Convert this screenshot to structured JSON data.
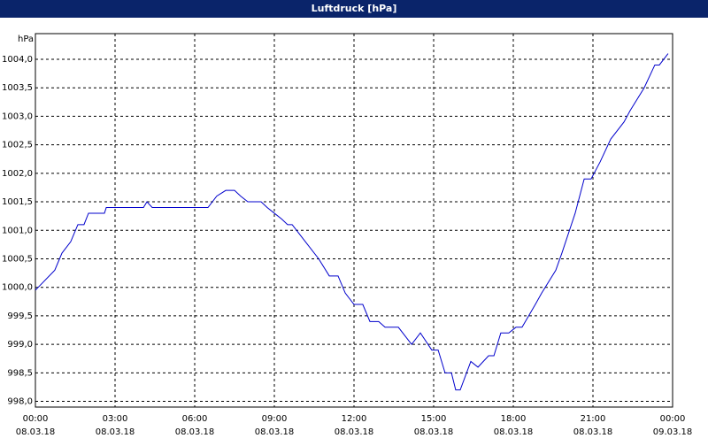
{
  "chart_data": {
    "type": "line",
    "title": "Luftdruck [hPa]",
    "y_label": "hPa",
    "x": [
      0,
      0.73,
      1.0,
      1.33,
      1.6,
      1.83,
      2.0,
      2.6,
      2.67,
      4.07,
      4.2,
      4.4,
      6.5,
      6.83,
      7.17,
      7.5,
      7.73,
      8.0,
      8.5,
      8.73,
      9.0,
      9.27,
      9.5,
      9.67,
      10.17,
      10.67,
      11.07,
      11.4,
      11.67,
      12.0,
      12.33,
      12.6,
      12.93,
      13.17,
      13.67,
      14.17,
      14.5,
      14.93,
      15.17,
      15.43,
      15.67,
      15.83,
      16.0,
      16.4,
      16.67,
      17.07,
      17.27,
      17.53,
      17.83,
      18.1,
      18.33,
      18.83,
      19.07,
      19.6,
      19.83,
      20.33,
      20.67,
      20.93,
      21.27,
      21.67,
      22.17,
      22.4,
      22.93,
      23.33,
      23.5,
      23.83
    ],
    "series": [
      {
        "name": "Luftdruck",
        "color": "#0000cc",
        "values": [
          999.95,
          1000.3,
          1000.6,
          1000.8,
          1001.1,
          1001.1,
          1001.3,
          1001.3,
          1001.4,
          1001.4,
          1001.5,
          1001.4,
          1001.4,
          1001.6,
          1001.7,
          1001.7,
          1001.6,
          1001.5,
          1001.5,
          1001.4,
          1001.3,
          1001.2,
          1001.1,
          1001.1,
          1000.8,
          1000.5,
          1000.2,
          1000.2,
          999.9,
          999.7,
          999.7,
          999.4,
          999.4,
          999.3,
          999.3,
          999.0,
          999.2,
          998.9,
          998.9,
          998.5,
          998.5,
          998.2,
          998.2,
          998.7,
          998.6,
          998.8,
          998.8,
          999.2,
          999.2,
          999.3,
          999.3,
          999.7,
          999.9,
          1000.3,
          1000.6,
          1001.3,
          1001.9,
          1001.9,
          1002.2,
          1002.6,
          1002.9,
          1003.1,
          1003.5,
          1003.9,
          1003.9,
          1004.1
        ]
      }
    ],
    "xlim": [
      0,
      24
    ],
    "xticks": [
      {
        "value": 0,
        "label": "00:00"
      },
      {
        "value": 3,
        "label": "03:00"
      },
      {
        "value": 6,
        "label": "06:00"
      },
      {
        "value": 9,
        "label": "09:00"
      },
      {
        "value": 12,
        "label": "12:00"
      },
      {
        "value": 15,
        "label": "15:00"
      },
      {
        "value": 18,
        "label": "18:00"
      },
      {
        "value": 21,
        "label": "21:00"
      },
      {
        "value": 24,
        "label": "00:00"
      }
    ],
    "xtick_dates": [
      "08.03.18",
      "08.03.18",
      "08.03.18",
      "08.03.18",
      "08.03.18",
      "08.03.18",
      "08.03.18",
      "08.03.18",
      "09.03.18"
    ],
    "ylim": [
      997.9,
      1004.45
    ],
    "yticks": [
      {
        "value": 998,
        "label": "998,0"
      },
      {
        "value": 998.5,
        "label": "998,5"
      },
      {
        "value": 999,
        "label": "999,0"
      },
      {
        "value": 999.5,
        "label": "999,5"
      },
      {
        "value": 1000,
        "label": "1000,0"
      },
      {
        "value": 1000.5,
        "label": "1000,5"
      },
      {
        "value": 1001,
        "label": "1001,0"
      },
      {
        "value": 1001.5,
        "label": "1001,5"
      },
      {
        "value": 1002,
        "label": "1002,0"
      },
      {
        "value": 1002.5,
        "label": "1002,5"
      },
      {
        "value": 1003,
        "label": "1003,0"
      },
      {
        "value": 1003.5,
        "label": "1003,5"
      },
      {
        "value": 1004,
        "label": "1004,0"
      }
    ],
    "grid": true
  }
}
